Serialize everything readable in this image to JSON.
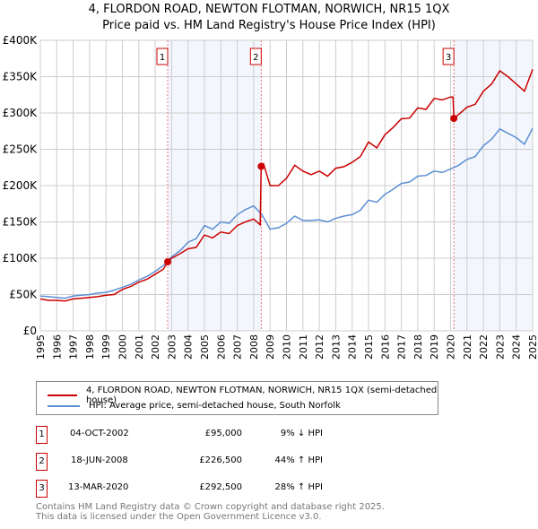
{
  "chart_data": {
    "type": "line",
    "title": "4, FLORDON ROAD, NEWTON FLOTMAN, NORWICH, NR15 1QX",
    "subtitle": "Price paid vs. HM Land Registry's House Price Index (HPI)",
    "xlim": [
      1995,
      2025
    ],
    "ylim": [
      0,
      400000
    ],
    "y_ticks": [
      {
        "v": 0,
        "label": "£0"
      },
      {
        "v": 50000,
        "label": "£50K"
      },
      {
        "v": 100000,
        "label": "£100K"
      },
      {
        "v": 150000,
        "label": "£150K"
      },
      {
        "v": 200000,
        "label": "£200K"
      },
      {
        "v": 250000,
        "label": "£250K"
      },
      {
        "v": 300000,
        "label": "£300K"
      },
      {
        "v": 350000,
        "label": "£350K"
      },
      {
        "v": 400000,
        "label": "£400K"
      }
    ],
    "x_ticks": [
      "1995",
      "1996",
      "1997",
      "1998",
      "1999",
      "2000",
      "2001",
      "2002",
      "2003",
      "2004",
      "2005",
      "2006",
      "2007",
      "2008",
      "2009",
      "2010",
      "2011",
      "2012",
      "2013",
      "2014",
      "2015",
      "2016",
      "2017",
      "2018",
      "2019",
      "2020",
      "2021",
      "2022",
      "2023",
      "2024",
      "2025"
    ],
    "grid": true,
    "shaded_ranges": [
      [
        2002.76,
        2008.46
      ],
      [
        2020.2,
        2025
      ]
    ],
    "series": [
      {
        "name": "4, FLORDON ROAD, NEWTON FLOTMAN, NORWICH, NR15 1QX (semi-detached house)",
        "color": "#cc0000",
        "x": [
          1995,
          1995.5,
          1996,
          1996.5,
          1997,
          1997.5,
          1998,
          1998.5,
          1999,
          1999.5,
          2000,
          2000.5,
          2001,
          2001.5,
          2002,
          2002.5,
          2002.76,
          2003,
          2003.5,
          2004,
          2004.5,
          2005,
          2005.5,
          2006,
          2006.5,
          2007,
          2007.5,
          2008,
          2008.4,
          2008.46,
          2008.6,
          2009,
          2009.5,
          2010,
          2010.5,
          2011,
          2011.5,
          2012,
          2012.5,
          2013,
          2013.5,
          2014,
          2014.5,
          2015,
          2015.5,
          2016,
          2016.5,
          2017,
          2017.5,
          2018,
          2018.5,
          2019,
          2019.5,
          2020,
          2020.15,
          2020.2,
          2020.5,
          2021,
          2021.5,
          2022,
          2022.5,
          2023,
          2023.5,
          2024,
          2024.5,
          2025
        ],
        "y": [
          44000,
          42000,
          42000,
          41000,
          44000,
          45000,
          46000,
          47000,
          49000,
          50000,
          57000,
          61000,
          67000,
          71000,
          78000,
          85000,
          95000,
          100000,
          106000,
          113000,
          115000,
          132000,
          128000,
          136000,
          134000,
          145000,
          150000,
          154000,
          146000,
          226500,
          230000,
          200000,
          200000,
          210000,
          228000,
          220000,
          215000,
          220000,
          213000,
          224000,
          226000,
          232000,
          240000,
          260000,
          252000,
          270000,
          280000,
          292000,
          293000,
          307000,
          305000,
          320000,
          318000,
          322000,
          322000,
          292500,
          298000,
          308000,
          312000,
          330000,
          340000,
          358000,
          350000,
          340000,
          330000,
          360000
        ]
      },
      {
        "name": "HPI: Average price, semi-detached house, South Norfolk",
        "color": "#5b8fd4",
        "x": [
          1995,
          1995.5,
          1996,
          1996.5,
          1997,
          1997.5,
          1998,
          1998.5,
          1999,
          1999.5,
          2000,
          2000.5,
          2001,
          2001.5,
          2002,
          2002.5,
          2003,
          2003.5,
          2004,
          2004.5,
          2005,
          2005.5,
          2006,
          2006.5,
          2007,
          2007.5,
          2008,
          2008.5,
          2009,
          2009.5,
          2010,
          2010.5,
          2011,
          2011.5,
          2012,
          2012.5,
          2013,
          2013.5,
          2014,
          2014.5,
          2015,
          2015.5,
          2016,
          2016.5,
          2017,
          2017.5,
          2018,
          2018.5,
          2019,
          2019.5,
          2020,
          2020.5,
          2021,
          2021.5,
          2022,
          2022.5,
          2023,
          2023.5,
          2024,
          2024.5,
          2025
        ],
        "y": [
          48000,
          47000,
          46000,
          45000,
          48000,
          49000,
          50000,
          52000,
          53000,
          56000,
          60000,
          64000,
          70000,
          75000,
          82000,
          90000,
          102000,
          110000,
          122000,
          127000,
          145000,
          140000,
          150000,
          148000,
          160000,
          167000,
          172000,
          160000,
          140000,
          142000,
          148000,
          158000,
          152000,
          152000,
          153000,
          150000,
          155000,
          158000,
          160000,
          166000,
          180000,
          177000,
          188000,
          195000,
          203000,
          205000,
          213000,
          214000,
          220000,
          218000,
          223000,
          228000,
          236000,
          240000,
          255000,
          264000,
          278000,
          272000,
          266000,
          257000,
          279000
        ]
      }
    ],
    "sales": [
      {
        "n": "1",
        "date": "04-OCT-2002",
        "x": 2002.76,
        "price": 95000,
        "price_label": "£95,000",
        "hpi": "9% ↓ HPI"
      },
      {
        "n": "2",
        "date": "18-JUN-2008",
        "x": 2008.46,
        "price": 226500,
        "price_label": "£226,500",
        "hpi": "44% ↑ HPI"
      },
      {
        "n": "3",
        "date": "13-MAR-2020",
        "x": 2020.2,
        "price": 292500,
        "price_label": "£292,500",
        "hpi": "28% ↑ HPI"
      }
    ]
  },
  "footer": {
    "line1": "Contains HM Land Registry data © Crown copyright and database right 2025.",
    "line2": "This data is licensed under the Open Government Licence v3.0."
  }
}
